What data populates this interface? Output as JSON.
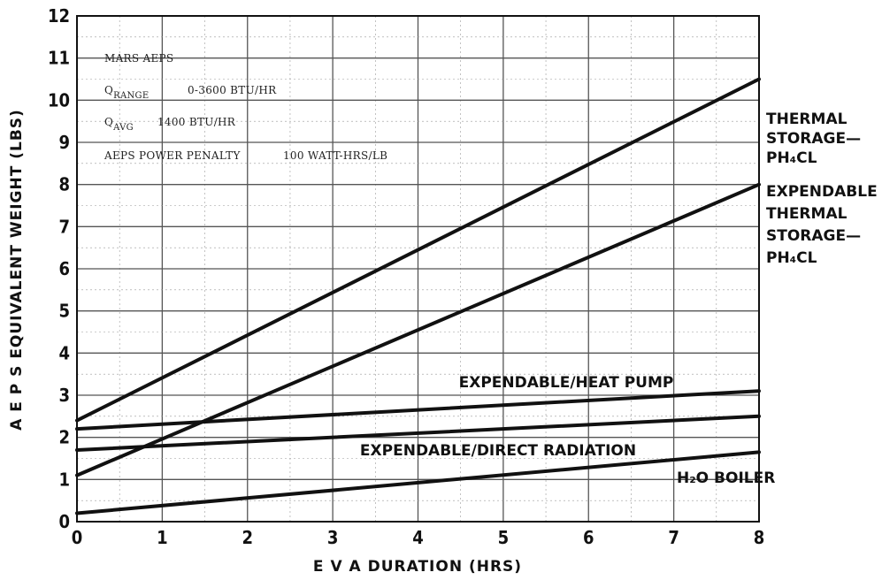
{
  "chart_data": {
    "type": "line",
    "title": "",
    "xlabel": "E V A  DURATION (HRS)",
    "ylabel": "A E P S  EQUIVALENT WEIGHT (LBS)",
    "xlim": [
      0,
      8
    ],
    "ylim": [
      0,
      12
    ],
    "xticks": [
      "0",
      "1",
      "2",
      "3",
      "4",
      "5",
      "6",
      "7",
      "8"
    ],
    "yticks": [
      "0",
      "1",
      "2",
      "3",
      "4",
      "5",
      "6",
      "7",
      "8",
      "9",
      "10",
      "11",
      "12"
    ],
    "grid": true,
    "series": [
      {
        "label_lines": [
          "THERMAL",
          "STORAGE—",
          "PH₄CL"
        ],
        "x": [
          0,
          8
        ],
        "y": [
          2.4,
          10.5
        ]
      },
      {
        "label_lines": [
          "EXPENDABLE /",
          "THERMAL",
          "STORAGE—",
          "PH₄CL"
        ],
        "x": [
          0,
          8
        ],
        "y": [
          1.1,
          8.0
        ]
      },
      {
        "label_lines": [
          "EXPENDABLE/HEAT PUMP"
        ],
        "x": [
          0,
          8
        ],
        "y": [
          2.2,
          3.1
        ]
      },
      {
        "label_lines": [
          "EXPENDABLE/DIRECT RADIATION"
        ],
        "x": [
          0,
          8
        ],
        "y": [
          1.7,
          2.5
        ]
      },
      {
        "label_lines": [
          "H₂O BOILER"
        ],
        "x": [
          0,
          8
        ],
        "y": [
          0.2,
          1.65
        ]
      }
    ],
    "annotations": {
      "title_line": "MARS AEPS",
      "q_range_prefix": "Q",
      "q_range_sub": "RANGE",
      "q_range_value": "0-3600 BTU/HR",
      "q_avg_prefix": "Q",
      "q_avg_sub": "AVG",
      "q_avg_value": "1400 BTU/HR",
      "penalty_label": "AEPS POWER PENALTY",
      "penalty_value": "100 WATT-HRS/LB"
    }
  }
}
